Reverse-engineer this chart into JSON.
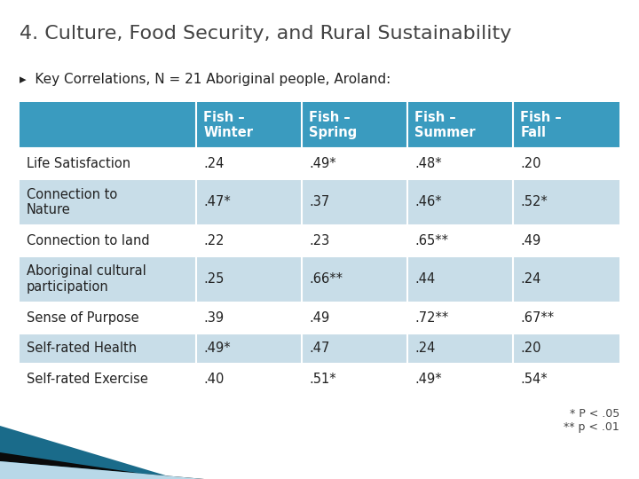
{
  "title": "4. Culture, Food Security, and Rural Sustainability",
  "subtitle": "▸  Key Correlations, N = 21 Aboriginal people, Aroland:",
  "col_headers": [
    "Fish –\nWinter",
    "Fish –\nSpring",
    "Fish –\nSummer",
    "Fish –\nFall"
  ],
  "row_labels": [
    "Life Satisfaction",
    "Connection to\nNature",
    "Connection to land",
    "Aboriginal cultural\nparticipation",
    "Sense of Purpose",
    "Self-rated Health",
    "Self-rated Exercise"
  ],
  "table_data": [
    [
      ".24",
      ".49*",
      ".48*",
      ".20"
    ],
    [
      ".47*",
      ".37",
      ".46*",
      ".52*"
    ],
    [
      ".22",
      ".23",
      ".65**",
      ".49"
    ],
    [
      ".25",
      ".66**",
      ".44",
      ".24"
    ],
    [
      ".39",
      ".49",
      ".72**",
      ".67**"
    ],
    [
      ".49*",
      ".47",
      ".24",
      ".20"
    ],
    [
      ".40",
      ".51*",
      ".49*",
      ".54*"
    ]
  ],
  "header_bg": "#3A9BBF",
  "header_text": "#FFFFFF",
  "row_bg_even": "#FFFFFF",
  "row_bg_odd": "#C8DDE8",
  "row_text": "#222222",
  "title_color": "#444444",
  "subtitle_color": "#222222",
  "note_text": "* P < .05\n** p < .01",
  "background_color": "#FFFFFF",
  "title_fontsize": 16,
  "subtitle_fontsize": 11,
  "table_fontsize": 10.5,
  "header_fontsize": 10.5
}
